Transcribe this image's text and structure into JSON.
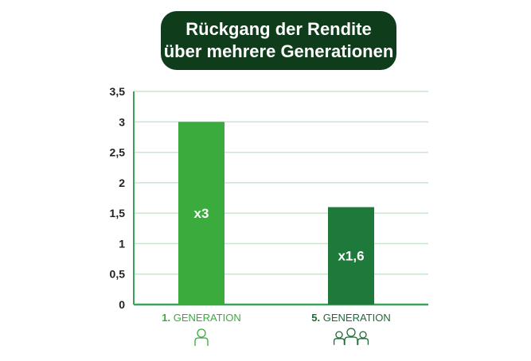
{
  "title": {
    "line1": "Rückgang der Rendite",
    "line2": "über mehrere Generationen"
  },
  "colors": {
    "title_bg": "#0f3d1c",
    "bar_1": "#3aab3c",
    "bar_2": "#1e7a3a",
    "axis": "#3aa35a",
    "grid": "#c9e6cf",
    "cat_1": "#3aab3c",
    "cat_2": "#1e6b34"
  },
  "chart_data": {
    "type": "bar",
    "categories": [
      {
        "num": "1.",
        "text": " GENERATION",
        "icon": "single-person-icon"
      },
      {
        "num": "5.",
        "text": " GENERATION",
        "icon": "group-of-people-icon"
      }
    ],
    "values": [
      3,
      1.6
    ],
    "bar_labels": [
      "x3",
      "x1,6"
    ],
    "ylim": [
      0,
      3.5
    ],
    "yticks": [
      {
        "value": 0,
        "label": "0"
      },
      {
        "value": 0.5,
        "label": "0,5"
      },
      {
        "value": 1,
        "label": "1"
      },
      {
        "value": 1.5,
        "label": "1,5"
      },
      {
        "value": 2,
        "label": "2"
      },
      {
        "value": 2.5,
        "label": "2,5"
      },
      {
        "value": 3,
        "label": "3"
      },
      {
        "value": 3.5,
        "label": "3,5"
      }
    ],
    "grid": true,
    "legend": "none"
  }
}
